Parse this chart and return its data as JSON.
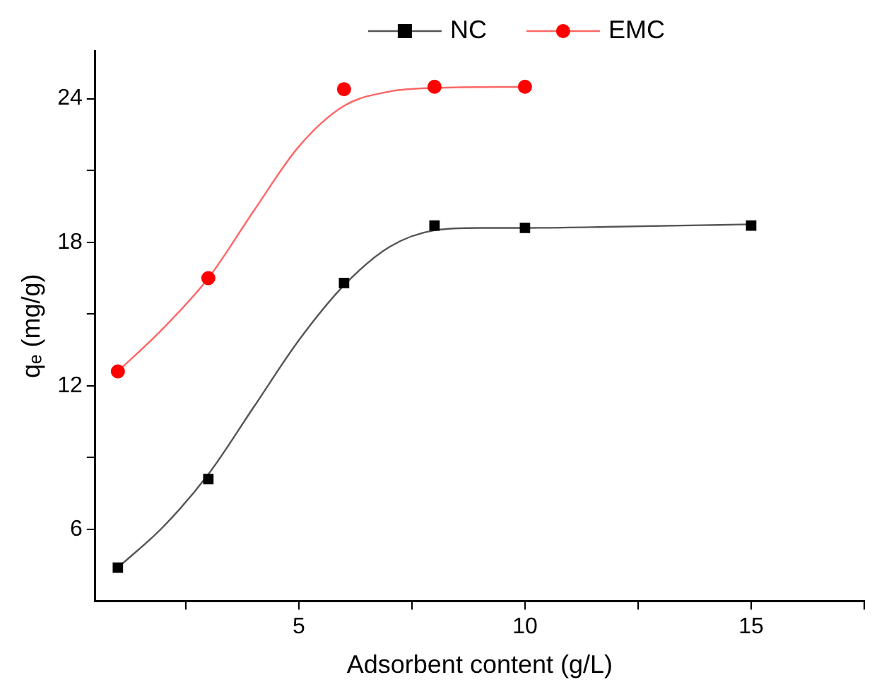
{
  "chart_data": {
    "type": "scatter",
    "xlabel": "Adsorbent content (g/L)",
    "ylabel": "qₑ (mg/g)",
    "xlim": [
      0.5,
      17.5
    ],
    "xticks": [
      {
        "value": 2.5,
        "label": null
      },
      5,
      {
        "value": 7.5,
        "label": null
      },
      10,
      {
        "value": 12.5,
        "label": null
      },
      15,
      {
        "value": 17.5,
        "label": null
      }
    ],
    "ylim": [
      3,
      26
    ],
    "yticks": [
      6,
      {
        "value": 9,
        "label": null
      },
      12,
      {
        "value": 15,
        "label": null
      },
      18,
      {
        "value": 21,
        "label": null
      },
      24
    ],
    "grid": false,
    "legend": "top",
    "series": [
      {
        "name": "NC",
        "type": "scatter",
        "marker": "square",
        "color": "#000000",
        "x": [
          1,
          3,
          6,
          8,
          10,
          15
        ],
        "values": [
          4.4,
          8.1,
          16.3,
          18.7,
          18.6,
          18.7
        ]
      },
      {
        "name": "EMC",
        "type": "scatter",
        "marker": "circle",
        "color": "#ff0000",
        "x": [
          1,
          3,
          6,
          8,
          10
        ],
        "values": [
          12.6,
          16.5,
          24.4,
          24.5,
          24.5
        ]
      },
      {
        "type": "line",
        "marker": "none",
        "color": "#555555",
        "x": [
          1,
          2,
          3,
          4,
          5,
          6,
          7,
          8,
          9,
          10,
          12,
          15
        ],
        "values": [
          4.4,
          6.1,
          8.3,
          11.1,
          13.9,
          16.2,
          17.8,
          18.5,
          18.6,
          18.6,
          18.65,
          18.75
        ]
      },
      {
        "type": "line",
        "marker": "none",
        "color": "#ff6666",
        "x": [
          1,
          2,
          3,
          4,
          5,
          6,
          7,
          8,
          10
        ],
        "values": [
          12.6,
          14.4,
          16.5,
          19.3,
          22.0,
          23.7,
          24.3,
          24.45,
          24.5
        ]
      }
    ]
  }
}
